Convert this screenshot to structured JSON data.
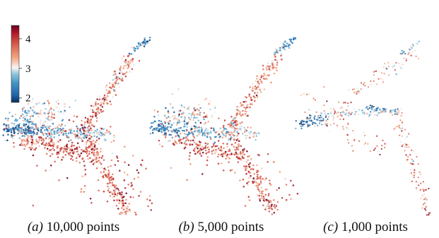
{
  "chart_data": [
    {
      "type": "scatter",
      "panel_label": "(a)",
      "caption": "10,000 points",
      "point_count": 10000,
      "colorbar": {
        "ticks": [
          2,
          3,
          4
        ],
        "range": [
          1.85,
          4.45
        ],
        "colormap": "RdBu_r"
      }
    },
    {
      "type": "scatter",
      "panel_label": "(b)",
      "caption": "5,000 points",
      "point_count": 5000
    },
    {
      "type": "scatter",
      "panel_label": "(c)",
      "caption": "1,000 points",
      "point_count": 1000
    }
  ],
  "colors": {
    "low": "#2166ac",
    "mid": "#f7f7f7",
    "high": "#b2182b"
  }
}
